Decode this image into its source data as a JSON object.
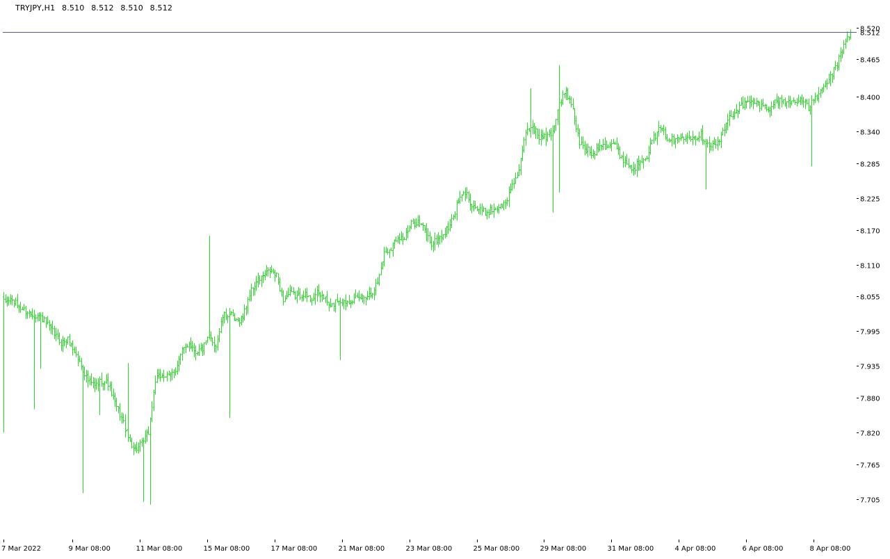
{
  "header": {
    "symbol": "TRYJPY,H1",
    "open": "8.510",
    "high": "8.512",
    "low": "8.510",
    "close": "8.512"
  },
  "chart_data": {
    "type": "ohlc",
    "title": "TRYJPY,H1",
    "bar_color": "#22dd22",
    "line_color": "#5a5a8c",
    "current_price": 8.512,
    "current_price_label": "8.512",
    "ylim": [
      7.654,
      8.522
    ],
    "y_ticks": [
      {
        "label": "8.520",
        "value": 8.52
      },
      {
        "label": "8.465",
        "value": 8.465
      },
      {
        "label": "8.400",
        "value": 8.4
      },
      {
        "label": "8.340",
        "value": 8.34
      },
      {
        "label": "8.285",
        "value": 8.285
      },
      {
        "label": "8.225",
        "value": 8.225
      },
      {
        "label": "8.170",
        "value": 8.17
      },
      {
        "label": "8.110",
        "value": 8.11
      },
      {
        "label": "8.055",
        "value": 8.055
      },
      {
        "label": "7.995",
        "value": 7.995
      },
      {
        "label": "7.935",
        "value": 7.935
      },
      {
        "label": "7.880",
        "value": 7.88
      },
      {
        "label": "7.820",
        "value": 7.82
      },
      {
        "label": "7.765",
        "value": 7.765
      },
      {
        "label": "7.705",
        "value": 7.705
      }
    ],
    "x_ticks": [
      {
        "label": "7 Mar 2022",
        "index": 0
      },
      {
        "label": "9 Mar 08:00",
        "index": 41
      },
      {
        "label": "11 Mar 08:00",
        "index": 81
      },
      {
        "label": "15 Mar 08:00",
        "index": 121
      },
      {
        "label": "17 Mar 08:00",
        "index": 161
      },
      {
        "label": "21 Mar 08:00",
        "index": 201
      },
      {
        "label": "23 Mar 08:00",
        "index": 241
      },
      {
        "label": "25 Mar 08:00",
        "index": 281
      },
      {
        "label": "29 Mar 08:00",
        "index": 321
      },
      {
        "label": "31 Mar 08:00",
        "index": 361
      },
      {
        "label": "4 Apr 08:00",
        "index": 401
      },
      {
        "label": "6 Apr 08:00",
        "index": 441
      },
      {
        "label": "8 Apr 08:00",
        "index": 481
      }
    ],
    "x_range": [
      -0.5,
      505
    ],
    "anchors": [
      [
        0,
        8.045
      ],
      [
        4,
        8.05
      ],
      [
        10,
        8.035
      ],
      [
        16,
        8.025
      ],
      [
        22,
        8.02
      ],
      [
        26,
        8.005
      ],
      [
        30,
        7.99
      ],
      [
        34,
        7.975
      ],
      [
        38,
        7.98
      ],
      [
        42,
        7.96
      ],
      [
        46,
        7.935
      ],
      [
        50,
        7.91
      ],
      [
        54,
        7.9
      ],
      [
        58,
        7.91
      ],
      [
        62,
        7.905
      ],
      [
        66,
        7.87
      ],
      [
        70,
        7.845
      ],
      [
        74,
        7.81
      ],
      [
        78,
        7.79
      ],
      [
        82,
        7.8
      ],
      [
        86,
        7.82
      ],
      [
        90,
        7.91
      ],
      [
        94,
        7.92
      ],
      [
        98,
        7.915
      ],
      [
        102,
        7.93
      ],
      [
        106,
        7.96
      ],
      [
        110,
        7.975
      ],
      [
        114,
        7.96
      ],
      [
        118,
        7.965
      ],
      [
        122,
        7.985
      ],
      [
        126,
        7.97
      ],
      [
        130,
        8.02
      ],
      [
        134,
        8.025
      ],
      [
        138,
        8.01
      ],
      [
        142,
        8.02
      ],
      [
        146,
        8.06
      ],
      [
        150,
        8.08
      ],
      [
        154,
        8.09
      ],
      [
        158,
        8.1
      ],
      [
        162,
        8.09
      ],
      [
        166,
        8.05
      ],
      [
        170,
        8.06
      ],
      [
        174,
        8.055
      ],
      [
        178,
        8.06
      ],
      [
        182,
        8.05
      ],
      [
        186,
        8.06
      ],
      [
        190,
        8.055
      ],
      [
        194,
        8.035
      ],
      [
        198,
        8.05
      ],
      [
        202,
        8.045
      ],
      [
        206,
        8.05
      ],
      [
        210,
        8.05
      ],
      [
        214,
        8.055
      ],
      [
        218,
        8.06
      ],
      [
        222,
        8.08
      ],
      [
        226,
        8.13
      ],
      [
        230,
        8.14
      ],
      [
        234,
        8.16
      ],
      [
        238,
        8.155
      ],
      [
        242,
        8.18
      ],
      [
        246,
        8.185
      ],
      [
        250,
        8.17
      ],
      [
        254,
        8.145
      ],
      [
        258,
        8.155
      ],
      [
        262,
        8.165
      ],
      [
        266,
        8.185
      ],
      [
        270,
        8.22
      ],
      [
        274,
        8.235
      ],
      [
        278,
        8.215
      ],
      [
        282,
        8.205
      ],
      [
        286,
        8.2
      ],
      [
        290,
        8.205
      ],
      [
        294,
        8.21
      ],
      [
        298,
        8.215
      ],
      [
        302,
        8.25
      ],
      [
        306,
        8.27
      ],
      [
        310,
        8.34
      ],
      [
        314,
        8.35
      ],
      [
        318,
        8.33
      ],
      [
        322,
        8.33
      ],
      [
        326,
        8.34
      ],
      [
        330,
        8.39
      ],
      [
        334,
        8.41
      ],
      [
        338,
        8.375
      ],
      [
        342,
        8.32
      ],
      [
        346,
        8.31
      ],
      [
        350,
        8.3
      ],
      [
        354,
        8.32
      ],
      [
        358,
        8.315
      ],
      [
        362,
        8.32
      ],
      [
        366,
        8.3
      ],
      [
        370,
        8.285
      ],
      [
        374,
        8.275
      ],
      [
        378,
        8.29
      ],
      [
        382,
        8.3
      ],
      [
        386,
        8.33
      ],
      [
        390,
        8.345
      ],
      [
        394,
        8.33
      ],
      [
        398,
        8.325
      ],
      [
        402,
        8.33
      ],
      [
        406,
        8.335
      ],
      [
        410,
        8.33
      ],
      [
        414,
        8.335
      ],
      [
        418,
        8.32
      ],
      [
        422,
        8.315
      ],
      [
        426,
        8.33
      ],
      [
        430,
        8.36
      ],
      [
        434,
        8.375
      ],
      [
        438,
        8.385
      ],
      [
        442,
        8.39
      ],
      [
        446,
        8.39
      ],
      [
        450,
        8.385
      ],
      [
        454,
        8.38
      ],
      [
        458,
        8.39
      ],
      [
        462,
        8.395
      ],
      [
        466,
        8.39
      ],
      [
        470,
        8.395
      ],
      [
        474,
        8.395
      ],
      [
        478,
        8.38
      ],
      [
        482,
        8.4
      ],
      [
        486,
        8.41
      ],
      [
        490,
        8.43
      ],
      [
        494,
        8.45
      ],
      [
        498,
        8.48
      ],
      [
        500,
        8.5
      ],
      [
        503,
        8.512
      ]
    ],
    "spikes": [
      {
        "index": 0,
        "low": 7.82
      },
      {
        "index": 18,
        "low": 7.86
      },
      {
        "index": 22,
        "low": 7.93
      },
      {
        "index": 47,
        "low": 7.715
      },
      {
        "index": 57,
        "low": 7.85
      },
      {
        "index": 74,
        "high": 7.94
      },
      {
        "index": 83,
        "low": 7.7
      },
      {
        "index": 87,
        "low": 7.695
      },
      {
        "index": 122,
        "high": 8.16
      },
      {
        "index": 134,
        "low": 7.845
      },
      {
        "index": 200,
        "low": 7.945
      },
      {
        "index": 313,
        "high": 8.415
      },
      {
        "index": 326,
        "low": 8.2
      },
      {
        "index": 330,
        "high": 8.455
      },
      {
        "index": 330,
        "low": 8.235
      },
      {
        "index": 417,
        "low": 8.24
      },
      {
        "index": 480,
        "low": 8.28
      }
    ]
  }
}
